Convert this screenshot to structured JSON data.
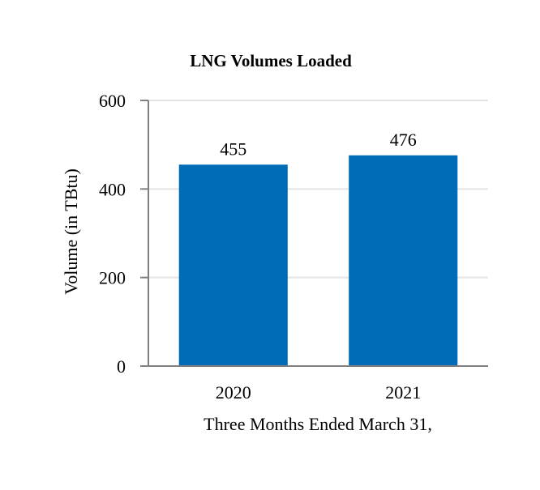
{
  "chart_data": {
    "type": "bar",
    "title": "LNG Volumes Loaded",
    "xlabel": "Three Months Ended March 31,",
    "ylabel": "Volume (in TBtu)",
    "categories": [
      "2020",
      "2021"
    ],
    "values": [
      455,
      476
    ],
    "data_labels": [
      "455",
      "476"
    ],
    "ylim": [
      0,
      600
    ],
    "yticks": [
      0,
      200,
      400,
      600
    ],
    "ytick_labels": [
      "0",
      "200",
      "400",
      "600"
    ],
    "grid": true,
    "legend": "none",
    "colors": {
      "bar": "#006bb6",
      "grid": "#e4e4e4",
      "axis": "#808080"
    }
  }
}
